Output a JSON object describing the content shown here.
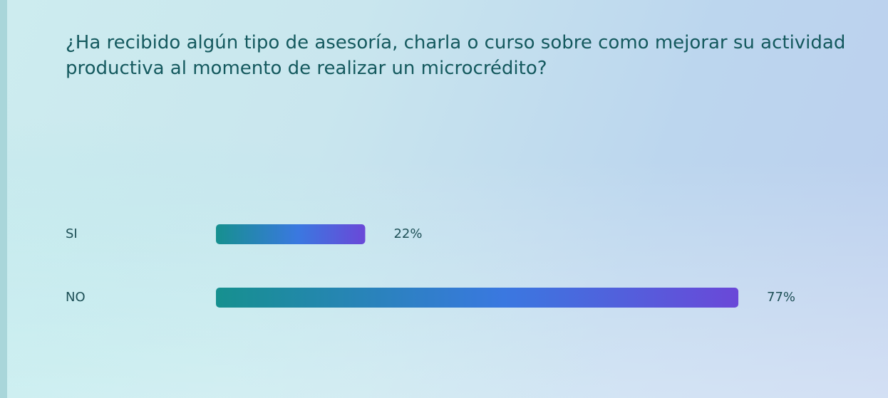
{
  "chart_data": {
    "type": "bar",
    "orientation": "horizontal",
    "title": "¿Ha recibido algún tipo de asesoría, charla o curso sobre como mejorar su actividad productiva al momento de realizar un microcrédito?",
    "categories": [
      "SI",
      "NO"
    ],
    "values": [
      22,
      77
    ],
    "value_labels": [
      "22%",
      "77%"
    ],
    "colors": [
      "#16908f",
      "#3a78e0",
      "#6a48d8"
    ],
    "xlim": [
      0,
      100
    ]
  }
}
